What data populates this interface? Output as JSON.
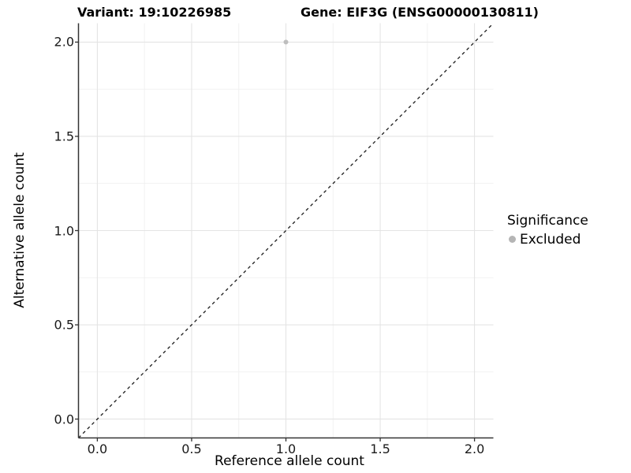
{
  "titles": {
    "variant": "Variant: 19:10226985",
    "gene": "Gene: EIF3G (ENSG00000130811)"
  },
  "axes": {
    "x_label": "Reference allele count",
    "y_label": "Alternative allele count"
  },
  "legend": {
    "title": "Significance",
    "entries": [
      {
        "label": "Excluded",
        "color": "#b5b5b5"
      }
    ]
  },
  "colors": {
    "background": "#ffffff",
    "axis_line": "#333333",
    "tick_mark": "#333333",
    "grid_major": "#e4e4e4",
    "grid_minor": "#f0f0f0",
    "point": "#bebebe",
    "reference_line": "#1a1a1a",
    "text": "#000000"
  },
  "chart_data": {
    "type": "scatter",
    "title": "Variant: 19:10226985   Gene: EIF3G (ENSG00000130811)",
    "xlabel": "Reference allele count",
    "ylabel": "Alternative allele count",
    "x_range": [
      -0.1,
      2.1
    ],
    "y_range": [
      -0.1,
      2.1
    ],
    "x_ticks": [
      0.0,
      0.5,
      1.0,
      1.5,
      2.0
    ],
    "y_ticks": [
      0.0,
      0.5,
      1.0,
      1.5,
      2.0
    ],
    "x_minor_ticks": [
      0.25,
      0.75,
      1.25,
      1.75
    ],
    "y_minor_ticks": [
      0.25,
      0.75,
      1.25,
      1.75
    ],
    "tick_decimals": 1,
    "grid": true,
    "legend_position": "right",
    "legend_title": "Significance",
    "series": [
      {
        "name": "Excluded",
        "color": "#bebebe",
        "point_radius": 3,
        "points": [
          {
            "x": 1.0,
            "y": 2.0
          }
        ]
      }
    ],
    "reference_line": {
      "type": "identity",
      "slope": 1,
      "intercept": 0,
      "style": "dashed",
      "color": "#1a1a1a"
    }
  }
}
